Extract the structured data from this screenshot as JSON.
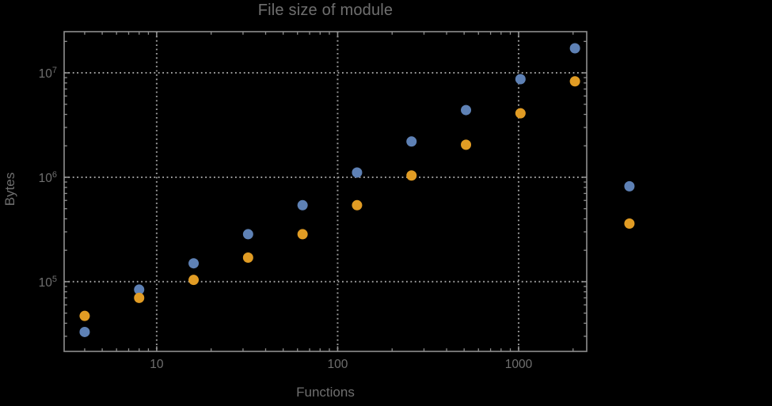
{
  "page": {
    "background_color": "#000000"
  },
  "chart_data": {
    "type": "scatter",
    "title": "File size of module",
    "xlabel": "Functions",
    "ylabel": "Bytes",
    "legend": "none",
    "grid": {
      "show": true,
      "style": "dotted",
      "at": "major-ticks"
    },
    "x_axis": {
      "scale": "log10",
      "range": [
        3.08,
        2379
      ],
      "major_ticks": [
        10,
        100,
        1000
      ],
      "major_tick_labels": [
        "10",
        "100",
        "1000"
      ]
    },
    "y_axis": {
      "scale": "log10",
      "range": [
        21500,
        24800000
      ],
      "major_ticks": [
        100000,
        1000000,
        10000000
      ],
      "major_tick_labels": [
        {
          "base": "10",
          "exp": "5"
        },
        {
          "base": "10",
          "exp": "6"
        },
        {
          "base": "10",
          "exp": "7"
        }
      ]
    },
    "x": [
      4,
      8,
      16,
      32,
      64,
      128,
      256,
      512,
      1024,
      2048,
      4096
    ],
    "series": [
      {
        "name": "blue",
        "color": "#5E81B5",
        "values": [
          33000,
          84000,
          150000,
          285000,
          540000,
          1110000,
          2200000,
          4400000,
          8700000,
          17200000,
          820000
        ]
      },
      {
        "name": "orange",
        "color": "#E19C24",
        "values": [
          47000,
          70000,
          104000,
          170000,
          285000,
          540000,
          1040000,
          2050000,
          4100000,
          8300000,
          360000
        ]
      }
    ],
    "style": {
      "frame_color": "#8F8F8F",
      "grid_color": "#9B9B9B",
      "text_color": "#6F6F6F",
      "point_radius": 6.5
    }
  }
}
